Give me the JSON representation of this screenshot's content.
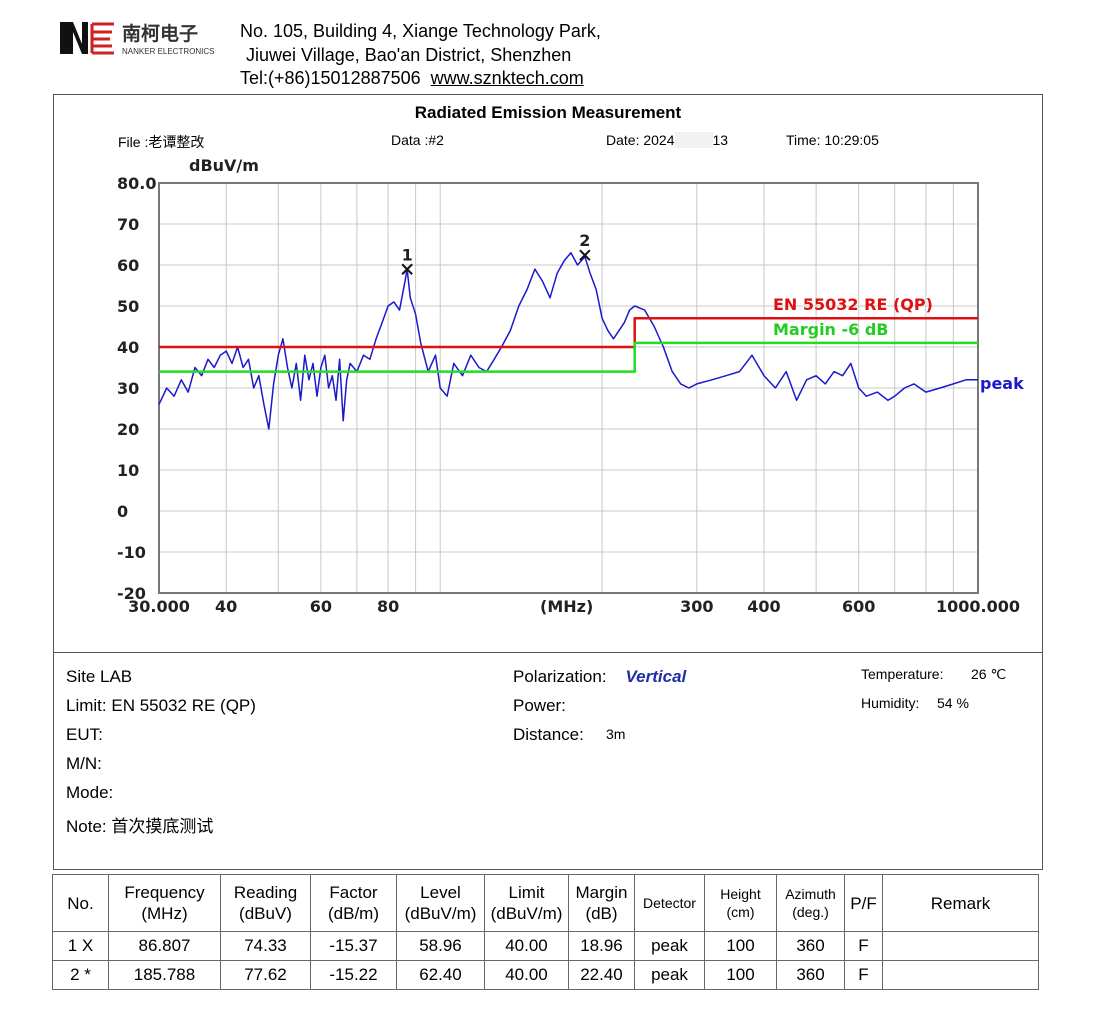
{
  "header": {
    "logo_text_cn": "南柯电子",
    "logo_text_en": "NANKER ELECTRONICS",
    "address_line1": "No. 105, Building 4, Xiange Technology Park,",
    "address_line2": "Jiuwei Village, Bao'an District, Shenzhen",
    "tel": "Tel:(+86)15012887506",
    "website": "www.sznktech.com"
  },
  "report": {
    "title": "Radiated Emission Measurement",
    "file": "File :老谭整改",
    "data": "Data :#2",
    "date": "Date: 2024",
    "date_tail": "13",
    "time": "Time: 10:29:05"
  },
  "chart_data": {
    "type": "line",
    "y_unit": "dBuV/m",
    "x_unit": "(MHz)",
    "xscale": "log",
    "xlim": [
      30,
      1000
    ],
    "ylim": [
      -20,
      80
    ],
    "grid": true,
    "x_tick_labels": [
      "30.000",
      "40",
      "60",
      "80",
      "300",
      "400",
      "600",
      "1000.000"
    ],
    "x_tick_values": [
      30,
      40,
      60,
      80,
      300,
      400,
      600,
      1000
    ],
    "y_tick_labels": [
      "80.0",
      "70",
      "60",
      "50",
      "40",
      "30",
      "20",
      "10",
      "0",
      "-10",
      "-20"
    ],
    "y_tick_values": [
      80,
      70,
      60,
      50,
      40,
      30,
      20,
      10,
      0,
      -10,
      -20
    ],
    "series": [
      {
        "name": "peak",
        "color": "#1a1acc",
        "x": [
          30,
          31,
          32,
          33,
          34,
          35,
          36,
          37,
          38,
          39,
          40,
          41,
          42,
          43,
          44,
          45,
          46,
          47,
          48,
          49,
          50,
          51,
          52,
          53,
          54,
          55,
          56,
          57,
          58,
          59,
          60,
          61,
          62,
          63,
          64,
          65,
          66,
          67,
          68,
          70,
          72,
          74,
          76,
          78,
          80,
          82,
          84,
          86,
          86.8,
          88,
          90,
          92,
          95,
          98,
          100,
          103,
          106,
          110,
          114,
          118,
          122,
          126,
          130,
          135,
          140,
          145,
          150,
          155,
          160,
          165,
          170,
          175,
          180,
          185.8,
          190,
          195,
          200,
          205,
          210,
          215,
          220,
          225,
          230,
          240,
          250,
          260,
          270,
          280,
          290,
          300,
          320,
          340,
          360,
          370,
          380,
          400,
          420,
          440,
          460,
          480,
          500,
          520,
          540,
          560,
          580,
          600,
          620,
          650,
          680,
          700,
          730,
          760,
          800,
          850,
          900,
          950,
          1000
        ],
        "values": [
          26,
          30,
          28,
          32,
          29,
          35,
          33,
          37,
          35,
          38,
          39,
          36,
          40,
          35,
          37,
          30,
          33,
          26,
          20,
          31,
          38,
          42,
          35,
          30,
          36,
          27,
          38,
          32,
          36,
          28,
          35,
          38,
          30,
          33,
          27,
          37,
          22,
          32,
          36,
          34,
          38,
          37,
          42,
          46,
          50,
          51,
          49,
          56,
          59,
          52,
          48,
          41,
          34,
          38,
          30,
          28,
          36,
          33,
          38,
          35,
          34,
          37,
          40,
          44,
          50,
          54,
          59,
          56,
          52,
          58,
          61,
          63,
          60,
          62,
          58,
          54,
          47,
          44,
          42,
          44,
          46,
          49,
          50,
          49,
          45,
          40,
          34,
          31,
          30,
          31,
          32,
          33,
          34,
          36,
          38,
          33,
          30,
          34,
          27,
          32,
          33,
          31,
          34,
          33,
          36,
          30,
          28,
          29,
          27,
          28,
          30,
          31,
          29,
          30,
          31,
          32,
          32
        ]
      },
      {
        "name": "EN 55032 RE (QP)",
        "color": "#dd1111",
        "x": [
          30,
          230,
          230,
          1000
        ],
        "values": [
          40,
          40,
          47,
          47
        ]
      },
      {
        "name": "Margin -6 dB",
        "color": "#22dd22",
        "x": [
          30,
          230,
          230,
          1000
        ],
        "values": [
          34,
          34,
          41,
          41
        ]
      }
    ],
    "markers": [
      {
        "label": "1",
        "x": 86.807,
        "y": 58.96
      },
      {
        "label": "2",
        "x": 185.788,
        "y": 62.4
      }
    ]
  },
  "info": {
    "site": "Site  LAB",
    "limit_label": "Limit:",
    "limit_value": "EN 55032 RE (QP)",
    "eut_label": "EUT:",
    "mn_label": "M/N:",
    "mode_label": "Mode:",
    "note_label": "Note:",
    "note_value": "首次摸底测试",
    "polarization_label": "Polarization:",
    "polarization_value": "Vertical",
    "power_label": "Power:",
    "distance_label": "Distance:",
    "distance_value": "3m",
    "temperature_label": "Temperature:",
    "temperature_value": "26 ℃",
    "humidity_label": "Humidity:",
    "humidity_value": "54 %"
  },
  "table": {
    "headers": [
      [
        "No.",
        ""
      ],
      [
        "Frequency",
        "(MHz)"
      ],
      [
        "Reading",
        "(dBuV)"
      ],
      [
        "Factor",
        "(dB/m)"
      ],
      [
        "Level",
        "(dBuV/m)"
      ],
      [
        "Limit",
        "(dBuV/m)"
      ],
      [
        "Margin",
        "(dB)"
      ],
      [
        "Detector",
        ""
      ],
      [
        "Height",
        "(cm)"
      ],
      [
        "Azimuth",
        "(deg.)"
      ],
      [
        "P/F",
        ""
      ],
      [
        "Remark",
        ""
      ]
    ],
    "rows": [
      [
        "1  X",
        "86.807",
        "74.33",
        "-15.37",
        "58.96",
        "40.00",
        "18.96",
        "peak",
        "100",
        "360",
        "F",
        ""
      ],
      [
        "2  *",
        "185.788",
        "77.62",
        "-15.22",
        "62.40",
        "40.00",
        "22.40",
        "peak",
        "100",
        "360",
        "F",
        ""
      ]
    ]
  }
}
